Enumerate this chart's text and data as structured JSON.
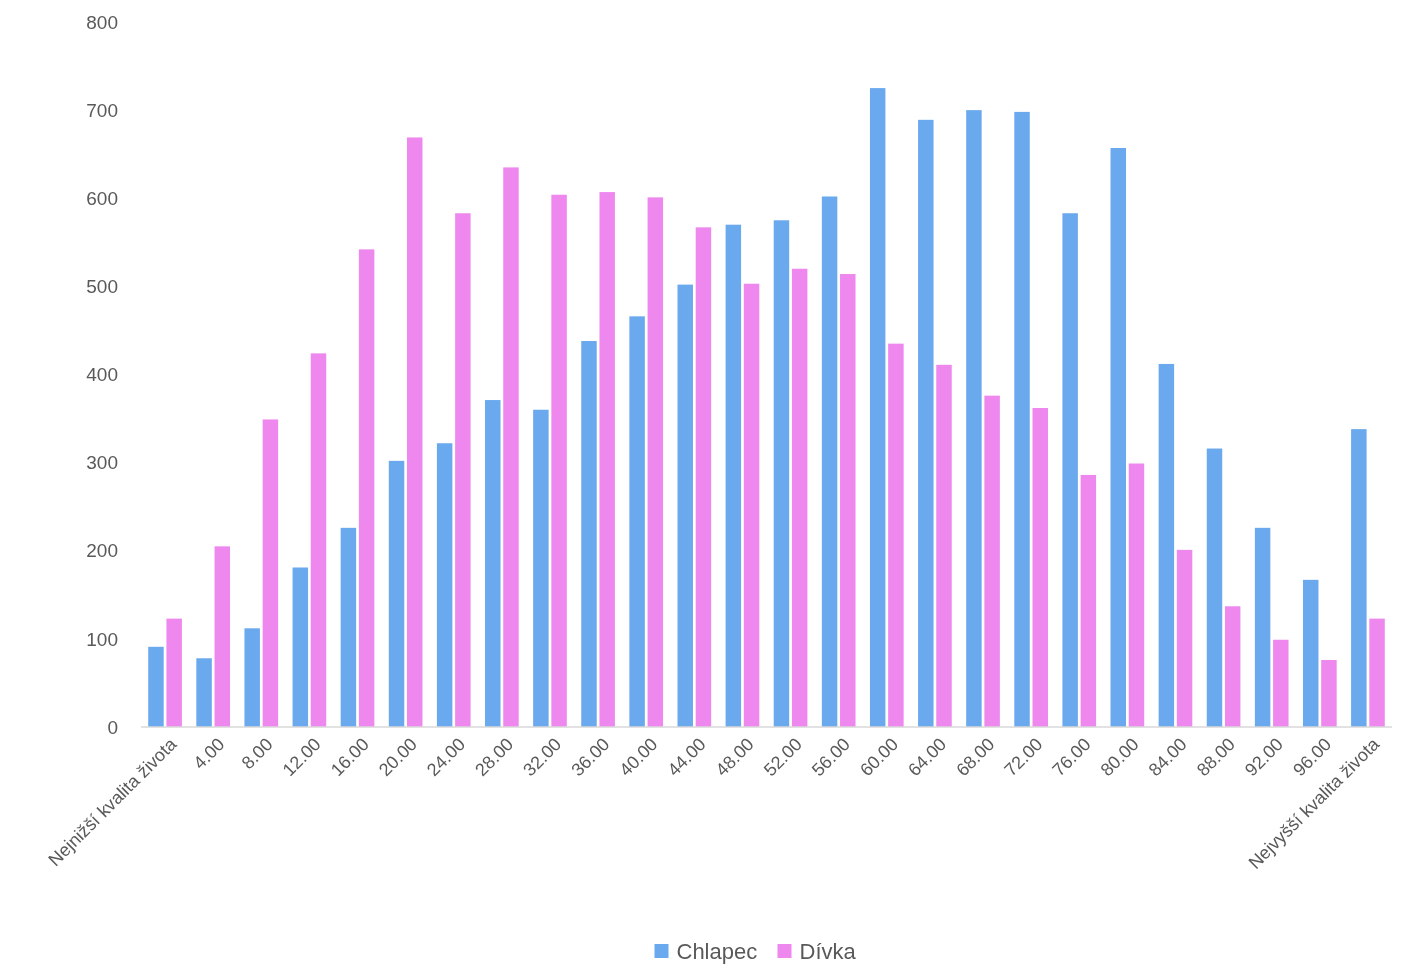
{
  "chart_data": {
    "type": "bar",
    "categories": [
      "Nejnižší kvalita života",
      "4.00",
      "8.00",
      "12.00",
      "16.00",
      "20.00",
      "24.00",
      "28.00",
      "32.00",
      "36.00",
      "40.00",
      "44.00",
      "48.00",
      "52.00",
      "56.00",
      "60.00",
      "64.00",
      "68.00",
      "72.00",
      "76.00",
      "80.00",
      "84.00",
      "88.00",
      "92.00",
      "96.00",
      "Nejvyšší kvalita života"
    ],
    "series": [
      {
        "name": "Chlapec",
        "color": "#6aa9ee",
        "values": [
          91,
          78,
          112,
          181,
          226,
          302,
          322,
          371,
          360,
          438,
          466,
          502,
          570,
          575,
          602,
          725,
          689,
          700,
          698,
          583,
          657,
          412,
          316,
          226,
          167,
          338
        ]
      },
      {
        "name": "Dívka",
        "color": "#ee88ee",
        "values": [
          123,
          205,
          349,
          424,
          542,
          669,
          583,
          635,
          604,
          607,
          601,
          567,
          503,
          520,
          514,
          435,
          411,
          376,
          362,
          286,
          299,
          201,
          137,
          99,
          76,
          123
        ]
      }
    ],
    "ylim": [
      0,
      800
    ],
    "yticks": [
      0,
      100,
      200,
      300,
      400,
      500,
      600,
      700,
      800
    ],
    "legend": "bottom"
  }
}
